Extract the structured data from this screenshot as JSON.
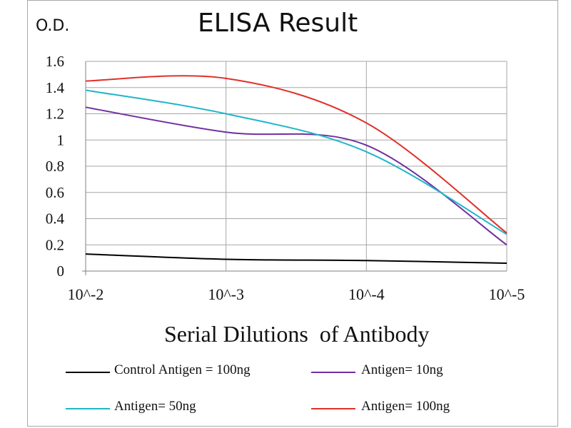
{
  "chart_data": {
    "type": "line",
    "title": "ELISA Result",
    "ylabel": "O.D.",
    "xlabel": "Serial Dilutions  of Antibody",
    "categories": [
      "10^-2",
      "10^-3",
      "10^-4",
      "10^-5"
    ],
    "ylim": [
      0,
      1.6
    ],
    "yticks": [
      "0",
      "0.2",
      "0.4",
      "0.6",
      "0.8",
      "1",
      "1.2",
      "1.4",
      "1.6"
    ],
    "grid": true,
    "legend_position": "bottom",
    "series": [
      {
        "name": "Control Antigen = 100ng",
        "color": "#000000",
        "values": [
          0.13,
          0.09,
          0.08,
          0.06
        ]
      },
      {
        "name": "Antigen= 10ng",
        "color": "#7030a0",
        "values": [
          1.25,
          1.06,
          0.96,
          0.2
        ]
      },
      {
        "name": "Antigen= 50ng",
        "color": "#1fb6c9",
        "values": [
          1.38,
          1.2,
          0.91,
          0.28
        ]
      },
      {
        "name": "Antigen= 100ng",
        "color": "#e0312a",
        "values": [
          1.45,
          1.47,
          1.13,
          0.29
        ]
      }
    ]
  }
}
